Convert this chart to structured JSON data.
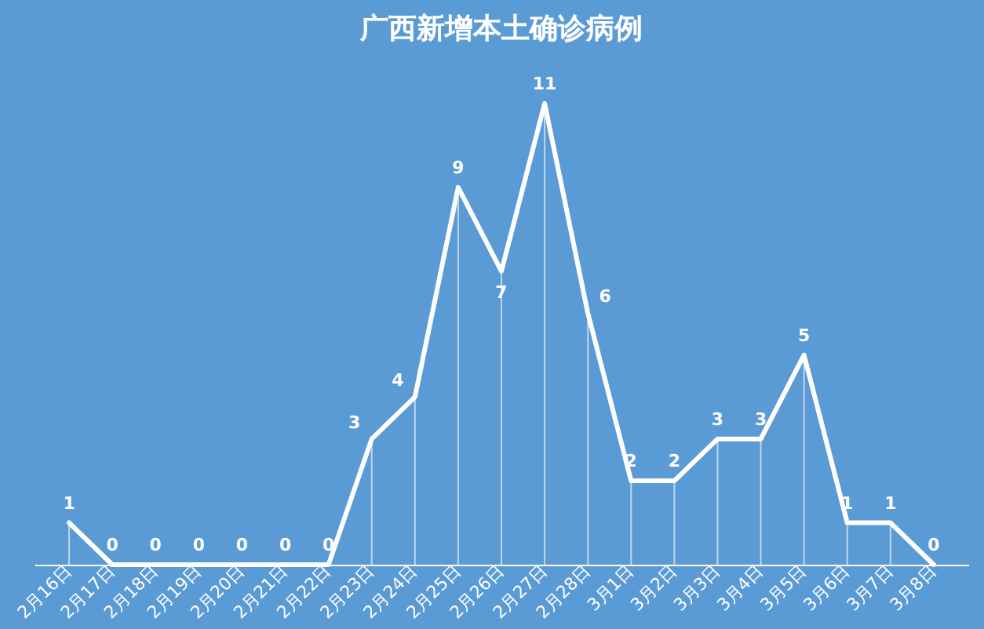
{
  "chart_data": {
    "type": "line",
    "title": "广西新增本土确诊病例",
    "categories": [
      "2月16日",
      "2月17日",
      "2月18日",
      "2月19日",
      "2月20日",
      "2月21日",
      "2月22日",
      "2月23日",
      "2月24日",
      "2月25日",
      "2月26日",
      "2月27日",
      "2月28日",
      "3月1日",
      "3月2日",
      "3月3日",
      "3月4日",
      "3月5日",
      "3月6日",
      "3月7日",
      "3月8日"
    ],
    "series": [
      {
        "color": "#ffffff",
        "values": [
          1,
          0,
          0,
          0,
          0,
          0,
          0,
          3,
          4,
          9,
          7,
          11,
          6,
          2,
          2,
          3,
          3,
          5,
          1,
          1,
          0
        ]
      }
    ],
    "data_labels": true,
    "grid": "x",
    "legend": false,
    "marker": "none",
    "line_style": "solid",
    "tick_labels": "x"
  }
}
